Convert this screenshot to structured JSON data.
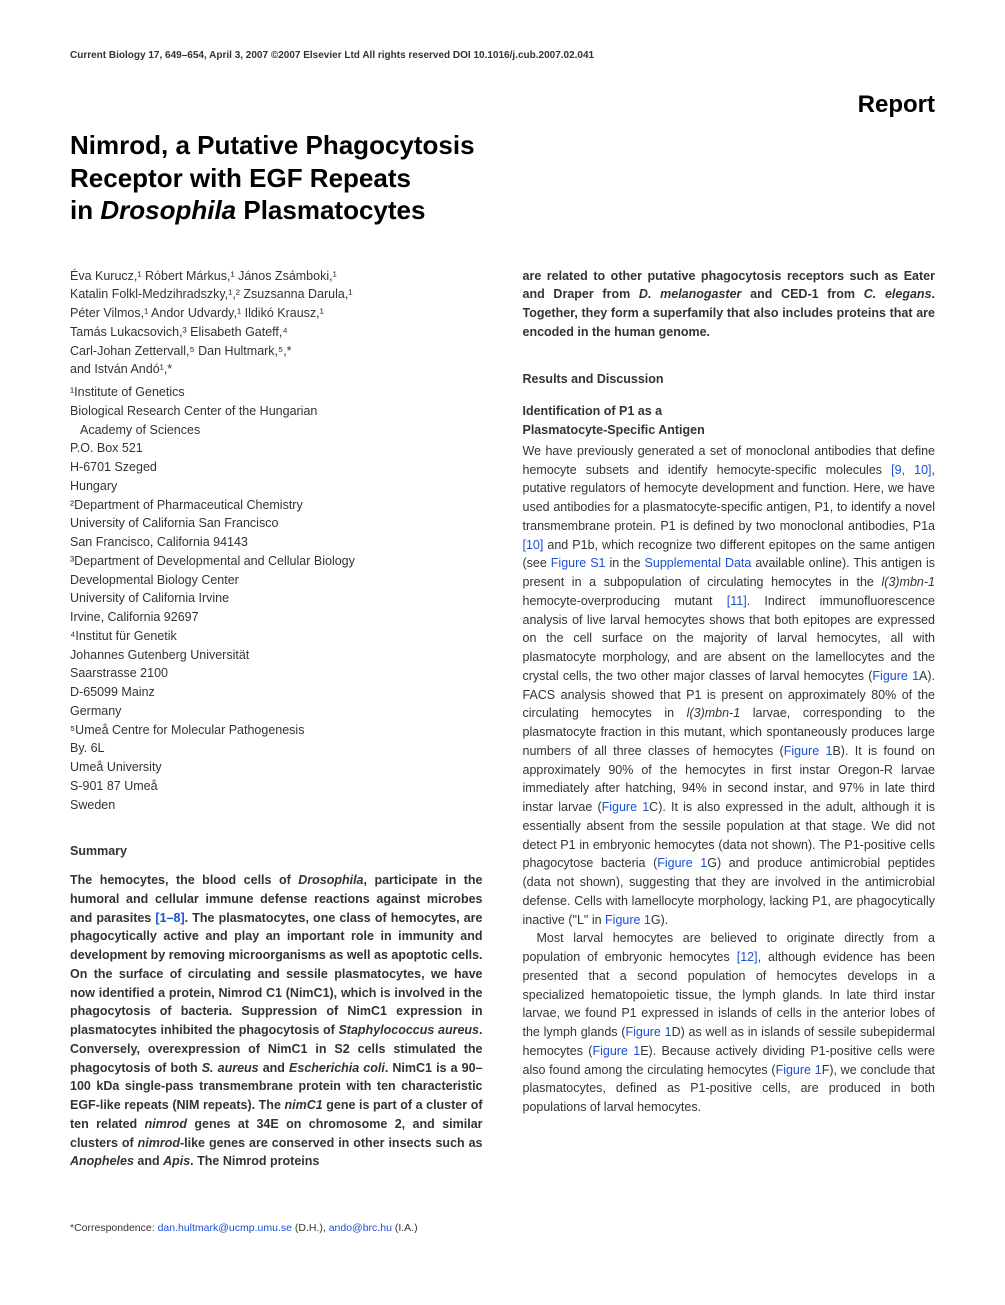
{
  "running_head": "Current Biology 17, 649–654, April 3, 2007 ©2007 Elsevier Ltd All rights reserved  DOI 10.1016/j.cub.2007.02.041",
  "report_label": "Report",
  "title_line1": "Nimrod, a Putative Phagocytosis",
  "title_line2": "Receptor with EGF Repeats",
  "title_line3_a": "in ",
  "title_line3_em": "Drosophila",
  "title_line3_b": " Plasmatocytes",
  "authors": {
    "l1": "Éva Kurucz,¹ Róbert Márkus,¹ János Zsámboki,¹",
    "l2": "Katalin Folkl-Medzihradszky,¹,² Zsuzsanna Darula,¹",
    "l3": "Péter Vilmos,¹ Andor Udvardy,¹ Ildikó Krausz,¹",
    "l4": "Tamás Lukacsovich,³ Elisabeth Gateff,⁴",
    "l5": "Carl-Johan Zettervall,⁵ Dan Hultmark,⁵,*",
    "l6": "and István Andó¹,*"
  },
  "affiliations": [
    "¹Institute of Genetics",
    "Biological Research Center of the Hungarian",
    "  Academy of Sciences",
    "P.O. Box 521",
    "H-6701 Szeged",
    "Hungary",
    "²Department of Pharmaceutical Chemistry",
    "University of California San Francisco",
    "San Francisco, California 94143",
    "³Department of Developmental and Cellular Biology",
    "Developmental Biology Center",
    "University of California Irvine",
    "Irvine, California 92697",
    "⁴Institut für Genetik",
    "Johannes Gutenberg Universität",
    "Saarstrasse 2100",
    "D-65099 Mainz",
    "Germany",
    "⁵Umeå Centre for Molecular Pathogenesis",
    "By. 6L",
    "Umeå University",
    "S-901 87 Umeå",
    "Sweden"
  ],
  "summary_head": "Summary",
  "summary_p1a": "The hemocytes, the blood cells of ",
  "summary_p1em1": "Drosophila",
  "summary_p1b": ", participate in the humoral and cellular immune defense reactions against microbes and parasites ",
  "summary_ref1": "[1–8]",
  "summary_p1c": ". The plasmatocytes, one class of hemocytes, are phagocytically active and play an important role in immunity and development by removing microorganisms as well as apoptotic cells. On the surface of circulating and sessile plasmatocytes, we have now identified a protein, Nimrod C1 (NimC1), which is involved in the phagocytosis of bacteria. Suppression of NimC1 expression in plasmatocytes inhibited the phagocytosis of ",
  "summary_p1em2": "Staphylococcus aureus",
  "summary_p1d": ". Conversely, overexpression of NimC1 in S2 cells stimulated the phagocytosis of both ",
  "summary_p1em3": "S. aureus",
  "summary_p1e": " and ",
  "summary_p1em4": "Escherichia coli",
  "summary_p1f": ". NimC1 is a 90–100 kDa single-pass transmembrane protein with ten characteristic EGF-like repeats (NIM repeats). The ",
  "summary_p1em5": "nimC1",
  "summary_p1g": " gene is part of a cluster of ten related ",
  "summary_p1em6": "nimrod",
  "summary_p1h": " genes at 34E on chromosome 2, and similar clusters of ",
  "summary_p1em7": "nimrod",
  "summary_p1i": "-like genes are conserved in other insects such as ",
  "summary_p1em8": "Anopheles",
  "summary_p1j": " and ",
  "summary_p1em9": "Apis",
  "summary_p1k": ". The Nimrod proteins",
  "col2_top_a": "are related to other putative phagocytosis receptors such as Eater and Draper from ",
  "col2_top_em1": "D. melanogaster",
  "col2_top_b": " and CED-1 from ",
  "col2_top_em2": "C. elegans",
  "col2_top_c": ". Together, they form a superfamily that also includes proteins that are encoded in the human genome.",
  "results_head": "Results and Discussion",
  "sub1_l1": "Identification of P1 as a",
  "sub1_l2": "Plasmatocyte-Specific Antigen",
  "res_p1_a": "We have previously generated a set of monoclonal antibodies that define hemocyte subsets and identify hemocyte-specific molecules ",
  "res_p1_ref1": "[9, 10]",
  "res_p1_b": ", putative regulators of hemocyte development and function. Here, we have used antibodies for a plasmatocyte-specific antigen, P1, to identify a novel transmembrane protein. P1 is defined by two monoclonal antibodies, P1a ",
  "res_p1_ref2": "[10]",
  "res_p1_c": " and P1b, which recognize two different epitopes on the same antigen (see ",
  "res_p1_link1": "Figure S1",
  "res_p1_d": " in the ",
  "res_p1_link2": "Supplemental Data",
  "res_p1_e": " available online). This antigen is present in a subpopulation of circulating hemocytes in the ",
  "res_p1_em1": "l(3)mbn-1",
  "res_p1_f": " hemocyte-overproducing mutant ",
  "res_p1_ref3": "[11]",
  "res_p1_g": ". Indirect immunofluorescence analysis of live larval hemocytes shows that both epitopes are expressed on the cell surface on the majority of larval hemocytes, all with plasmatocyte morphology, and are absent on the lamellocytes and the crystal cells, the two other major classes of larval hemocytes (",
  "res_p1_link3": "Figure 1",
  "res_p1_h": "A). FACS analysis showed that P1 is present on approximately 80% of the circulating hemocytes in ",
  "res_p1_em2": "l(3)mbn-1",
  "res_p1_i": " larvae, corresponding to the plasmatocyte fraction in this mutant, which spontaneously produces large numbers of all three classes of hemocytes (",
  "res_p1_link4": "Figure 1",
  "res_p1_j": "B). It is found on approximately 90% of the hemocytes in first instar Oregon-R larvae immediately after hatching, 94% in second instar, and 97% in late third instar larvae (",
  "res_p1_link5": "Figure 1",
  "res_p1_k": "C). It is also expressed in the adult, although it is essentially absent from the sessile population at that stage. We did not detect P1 in embryonic hemocytes (data not shown). The P1-positive cells phagocytose bacteria (",
  "res_p1_link6": "Figure 1",
  "res_p1_l": "G) and produce antimicrobial peptides (data not shown), suggesting that they are involved in the antimicrobial defense. Cells with lamellocyte morphology, lacking P1, are phagocytically inactive (\"L\" in ",
  "res_p1_link7": "Figure 1",
  "res_p1_m": "G).",
  "res_p2_a": "Most larval hemocytes are believed to originate directly from a population of embryonic hemocytes ",
  "res_p2_ref1": "[12]",
  "res_p2_b": ", although evidence has been presented that a second population of hemocytes develops in a specialized hematopoietic tissue, the lymph glands. In late third instar larvae, we found P1 expressed in islands of cells in the anterior lobes of the lymph glands (",
  "res_p2_link1": "Figure 1",
  "res_p2_c": "D) as well as in islands of sessile subepidermal hemocytes (",
  "res_p2_link2": "Figure 1",
  "res_p2_d": "E). Because actively dividing P1-positive cells were also found among the circulating hemocytes (",
  "res_p2_link3": "Figure 1",
  "res_p2_e": "F), we conclude that plasmatocytes, defined as P1-positive cells, are produced in both populations of larval hemocytes.",
  "corr_label": "*Correspondence: ",
  "corr_email1": "dan.hultmark@ucmp.umu.se",
  "corr_mid": " (D.H.), ",
  "corr_email2": "ando@brc.hu",
  "corr_end": " (I.A.)"
}
